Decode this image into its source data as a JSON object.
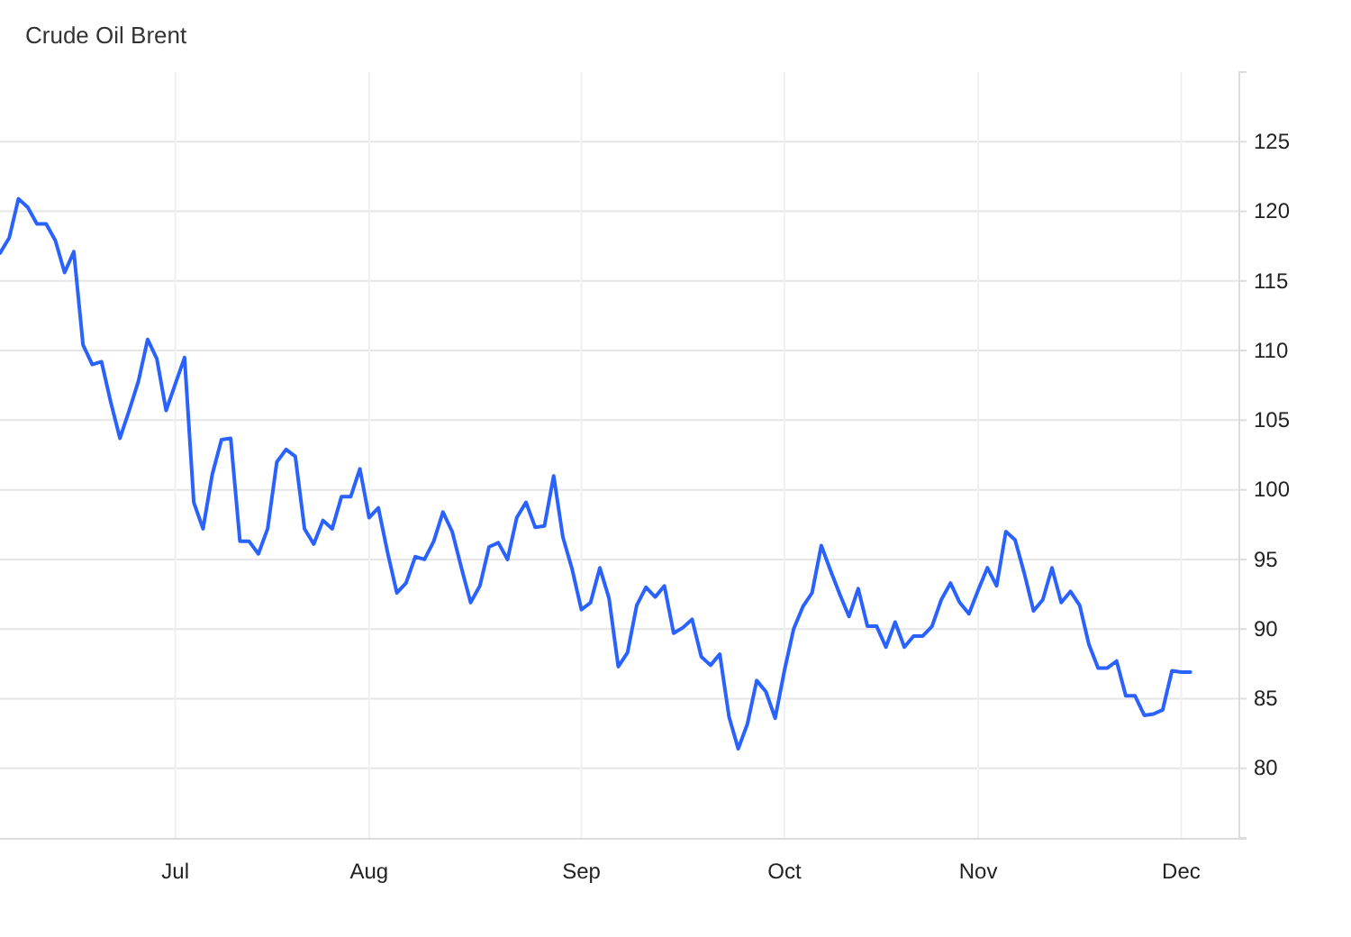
{
  "chart_data": {
    "type": "line",
    "title": "Crude Oil Brent",
    "categories": [
      null,
      null,
      null,
      null,
      null,
      null,
      null,
      null,
      null,
      null,
      null,
      null,
      null,
      null,
      null,
      null,
      null,
      null,
      null,
      "Jul",
      null,
      null,
      null,
      null,
      null,
      null,
      null,
      null,
      null,
      null,
      null,
      null,
      null,
      null,
      null,
      null,
      null,
      null,
      null,
      null,
      "Aug",
      null,
      null,
      null,
      null,
      null,
      null,
      null,
      null,
      null,
      null,
      null,
      null,
      null,
      null,
      null,
      null,
      null,
      null,
      null,
      null,
      null,
      null,
      "Sep",
      null,
      null,
      null,
      null,
      null,
      null,
      null,
      null,
      null,
      null,
      null,
      null,
      null,
      null,
      null,
      null,
      null,
      null,
      null,
      null,
      null,
      "Oct",
      null,
      null,
      null,
      null,
      null,
      null,
      null,
      null,
      null,
      null,
      null,
      null,
      null,
      null,
      null,
      null,
      null,
      null,
      null,
      null,
      "Nov",
      null,
      null,
      null,
      null,
      null,
      null,
      null,
      null,
      null,
      null,
      null,
      null,
      null,
      null,
      null,
      null,
      null,
      null,
      null,
      null,
      null,
      "Dec",
      null
    ],
    "values": [
      117.0,
      118.1,
      120.9,
      120.3,
      119.1,
      119.1,
      117.9,
      115.6,
      117.1,
      110.4,
      109.0,
      109.2,
      106.3,
      103.7,
      105.7,
      107.8,
      110.8,
      109.4,
      105.7,
      107.6,
      109.5,
      99.1,
      97.2,
      101.1,
      103.6,
      103.7,
      96.3,
      96.3,
      95.4,
      97.2,
      102.0,
      102.9,
      102.4,
      97.2,
      96.1,
      97.8,
      97.2,
      99.5,
      99.5,
      101.5,
      98.0,
      98.7,
      95.5,
      92.6,
      93.3,
      95.2,
      95.0,
      96.3,
      98.4,
      97.0,
      94.4,
      91.9,
      93.1,
      95.9,
      96.2,
      95.0,
      98.0,
      99.1,
      97.3,
      97.4,
      101.0,
      96.6,
      94.3,
      91.4,
      91.9,
      94.4,
      92.2,
      87.3,
      88.3,
      91.7,
      93.0,
      92.3,
      93.1,
      89.7,
      90.1,
      90.7,
      88.0,
      87.4,
      88.2,
      83.7,
      81.4,
      83.2,
      86.3,
      85.5,
      83.6,
      87.0,
      90.0,
      91.6,
      92.6,
      96.0,
      94.2,
      92.5,
      90.9,
      92.9,
      90.2,
      90.2,
      88.7,
      90.5,
      88.7,
      89.5,
      89.5,
      90.2,
      92.1,
      93.3,
      91.9,
      91.1,
      92.8,
      94.4,
      93.1,
      97.0,
      96.4,
      94.0,
      91.3,
      92.1,
      94.4,
      91.9,
      92.7,
      91.7,
      88.9,
      87.2,
      87.2,
      87.7,
      85.2,
      85.2,
      83.8,
      83.9,
      84.2,
      87.0,
      86.9,
      86.9
    ],
    "color": "#2962ff",
    "ylim": [
      75,
      130
    ],
    "yticks": [
      80,
      85,
      90,
      95,
      100,
      105,
      110,
      115,
      120,
      125
    ],
    "grid": true
  }
}
